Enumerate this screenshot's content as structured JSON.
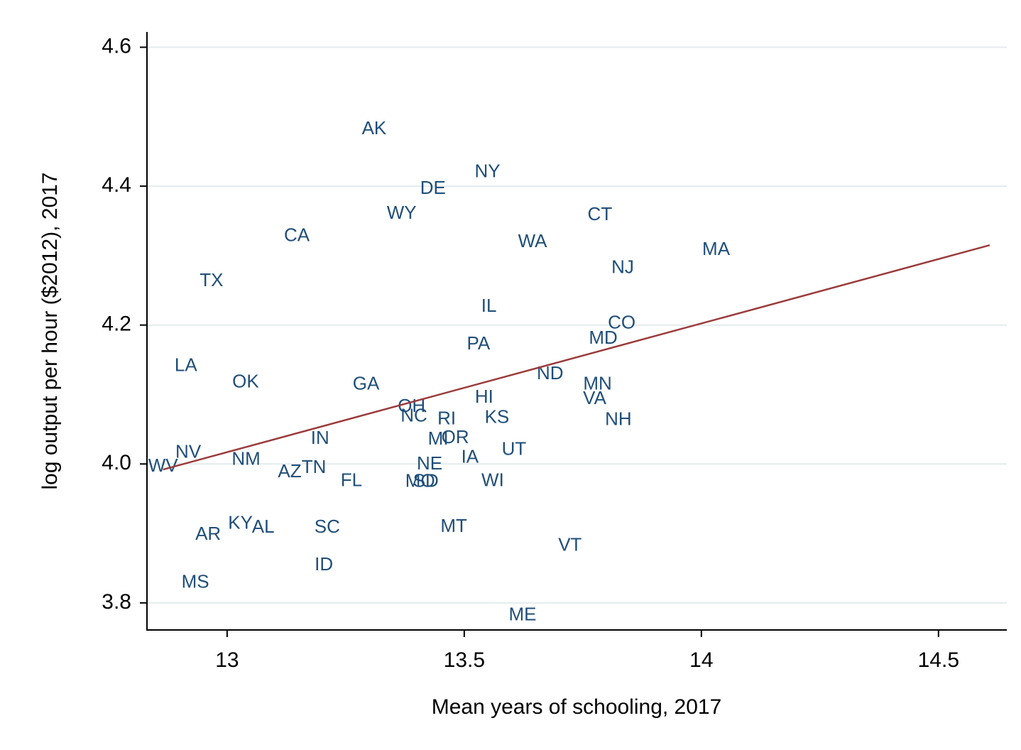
{
  "chart_data": {
    "type": "scatter",
    "xlabel": "Mean years of schooling, 2017",
    "ylabel": "log output per hour ($2012), 2017",
    "labels": [
      "AK",
      "NY",
      "DE",
      "WY",
      "CA",
      "CT",
      "WA",
      "MA",
      "NJ",
      "TX",
      "IL",
      "CO",
      "MD",
      "PA",
      "LA",
      "OK",
      "GA",
      "ND",
      "MN",
      "VA",
      "HI",
      "OH",
      "NC",
      "RI",
      "KS",
      "NH",
      "IN",
      "MI",
      "OR",
      "UT",
      "IA",
      "NV",
      "WV",
      "NM",
      "AZ",
      "TN",
      "NE",
      "FL",
      "MO",
      "SD",
      "WI",
      "KY",
      "AL",
      "AR",
      "SC",
      "MT",
      "VT",
      "ID",
      "MS",
      "ME"
    ],
    "x": [
      13.31,
      13.549,
      13.434,
      13.368,
      13.147,
      13.786,
      13.644,
      14.031,
      13.834,
      12.967,
      13.552,
      13.832,
      13.793,
      13.53,
      12.913,
      13.039,
      13.293,
      13.681,
      13.781,
      13.775,
      13.542,
      13.389,
      13.394,
      13.463,
      13.569,
      13.825,
      13.196,
      13.445,
      13.481,
      13.605,
      13.512,
      12.918,
      12.865,
      13.04,
      13.132,
      13.183,
      13.427,
      13.262,
      13.407,
      13.419,
      13.56,
      13.028,
      13.076,
      12.96,
      13.211,
      13.478,
      13.723,
      13.204,
      12.933,
      13.623
    ],
    "y": [
      4.482,
      4.42,
      4.396,
      4.36,
      4.328,
      4.358,
      4.319,
      4.308,
      4.282,
      4.263,
      4.226,
      4.202,
      4.18,
      4.172,
      4.141,
      4.117,
      4.114,
      4.129,
      4.114,
      4.093,
      4.095,
      4.082,
      4.068,
      4.064,
      4.066,
      4.063,
      4.036,
      4.035,
      4.037,
      4.02,
      4.009,
      4.016,
      3.996,
      4.006,
      3.988,
      3.994,
      3.999,
      3.975,
      3.974,
      3.974,
      3.975,
      3.914,
      3.908,
      3.898,
      3.908,
      3.909,
      3.882,
      3.854,
      3.829,
      3.782
    ],
    "color": "#1f4e79",
    "fit": {
      "x": [
        12.865,
        14.608
      ],
      "y": [
        3.992,
        4.315
      ],
      "color": "#9b3b3b"
    },
    "xlim": [
      12.831,
      14.644
    ],
    "ylim": [
      3.761,
      4.622
    ],
    "xticks": [
      13,
      13.5,
      14,
      14.5
    ],
    "yticks": [
      3.8,
      {
        "value": 4,
        "label": "4.0"
      },
      4.2,
      4.4,
      4.6
    ],
    "grid": true
  }
}
